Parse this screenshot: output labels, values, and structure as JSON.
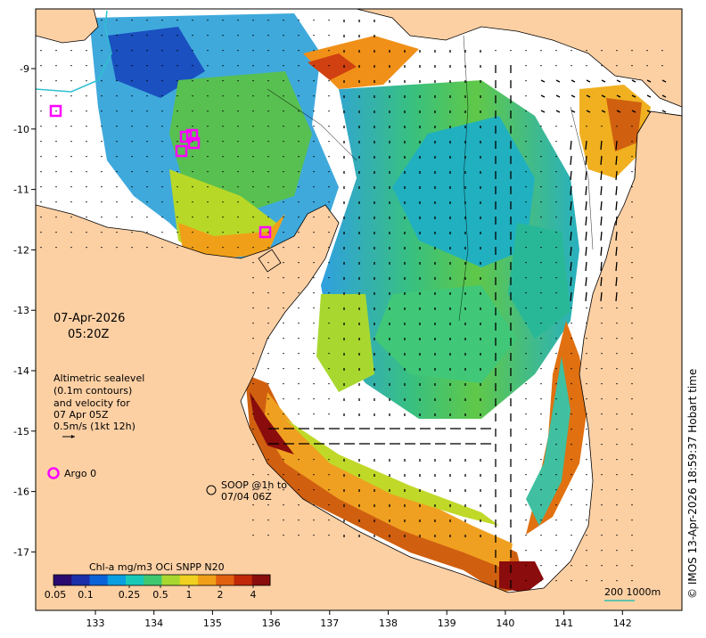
{
  "map": {
    "date": "07-Apr-2026",
    "time": "05:20Z",
    "legend_lines": [
      "Altimetric sealevel",
      "(0.1m contours)",
      "and velocity for",
      "07 Apr 05Z",
      "0.5m/s (1kt 12h)"
    ],
    "argo_label": "Argo 0",
    "soop_lines": [
      "SOOP @1h to",
      "07/04 06Z"
    ],
    "colorbar": {
      "title": "Chl-a mg/m3 OCi SNPP N20",
      "ticks": [
        "0.05",
        "0.1",
        "0.25",
        "0.5",
        "1",
        "2",
        "4"
      ],
      "colors": [
        "#2a0a6e",
        "#1a2fa8",
        "#0a63d6",
        "#0aa0e0",
        "#1ac8b8",
        "#40c870",
        "#a8d830",
        "#f0d020",
        "#f0a018",
        "#e06010",
        "#c02808",
        "#8a0c0c"
      ]
    },
    "scale_bar": "200 1000m",
    "copyright": "© IMOS 13-Apr-2026 18:59:37 Hobart time",
    "lon_ticks": [
      "133",
      "134",
      "135",
      "136",
      "137",
      "138",
      "139",
      "140",
      "141",
      "142"
    ],
    "lat_ticks": [
      "-9",
      "-10",
      "-11",
      "-12",
      "-13",
      "-14",
      "-15",
      "-16",
      "-17"
    ],
    "colors": {
      "land": "#fdd0a4",
      "ocean": "#ffffff",
      "argo": "#ff00ff",
      "scalebar": "#30c0b0"
    }
  }
}
